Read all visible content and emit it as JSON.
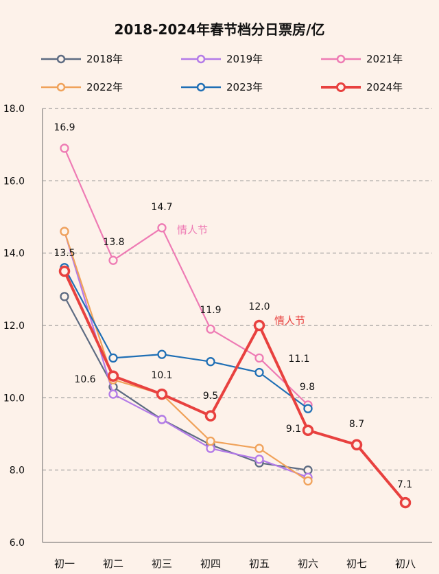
{
  "chart_data": {
    "type": "line",
    "title": "2018-2024年春节档分日票房/亿",
    "xlabel": "",
    "ylabel": "",
    "categories": [
      "初一",
      "初二",
      "初三",
      "初四",
      "初五",
      "初六",
      "初七",
      "初八"
    ],
    "ylim": [
      6.0,
      18.0
    ],
    "yticks": [
      "18.0",
      "16.0",
      "14.0",
      "12.0",
      "10.0",
      "8.0",
      "6.0"
    ],
    "grid": true,
    "legend_position": "top",
    "series": [
      {
        "name": "2018年",
        "color": "#5d6b82",
        "values": [
          12.8,
          10.3,
          9.4,
          8.7,
          8.2,
          8.0,
          null,
          null
        ]
      },
      {
        "name": "2019年",
        "color": "#b37ae8",
        "values": [
          14.6,
          10.1,
          9.4,
          8.6,
          8.3,
          7.8,
          null,
          null
        ]
      },
      {
        "name": "2021年",
        "color": "#ee7bb4",
        "values": [
          16.9,
          13.8,
          14.7,
          11.9,
          11.1,
          9.8,
          null,
          null
        ]
      },
      {
        "name": "2022年",
        "color": "#f0a25a",
        "values": [
          14.6,
          10.5,
          10.1,
          8.8,
          8.6,
          7.7,
          null,
          null
        ]
      },
      {
        "name": "2023年",
        "color": "#1f6fb5",
        "values": [
          13.6,
          11.1,
          11.2,
          11.0,
          10.7,
          9.7,
          null,
          null
        ]
      },
      {
        "name": "2024年",
        "color": "#e8413f",
        "values": [
          13.5,
          10.6,
          10.1,
          9.5,
          12.0,
          9.1,
          8.7,
          7.1
        ]
      }
    ],
    "data_labels": [
      {
        "text": "16.9",
        "color": "#111111"
      },
      {
        "text": "13.8",
        "color": "#111111"
      },
      {
        "text": "14.7",
        "color": "#111111"
      },
      {
        "text": "11.9",
        "color": "#111111"
      },
      {
        "text": "12.0",
        "color": "#111111"
      },
      {
        "text": "11.1",
        "color": "#111111"
      },
      {
        "text": "9.8",
        "color": "#111111"
      },
      {
        "text": "13.5",
        "color": "#111111"
      },
      {
        "text": "10.6",
        "color": "#111111"
      },
      {
        "text": "10.1",
        "color": "#111111"
      },
      {
        "text": "9.5",
        "color": "#111111"
      },
      {
        "text": "9.1",
        "color": "#111111"
      },
      {
        "text": "8.7",
        "color": "#111111"
      },
      {
        "text": "7.1",
        "color": "#111111"
      }
    ],
    "annotations": [
      {
        "text": "情人节",
        "color": "#ee7bb4"
      },
      {
        "text": "情人节",
        "color": "#e8413f"
      }
    ]
  }
}
